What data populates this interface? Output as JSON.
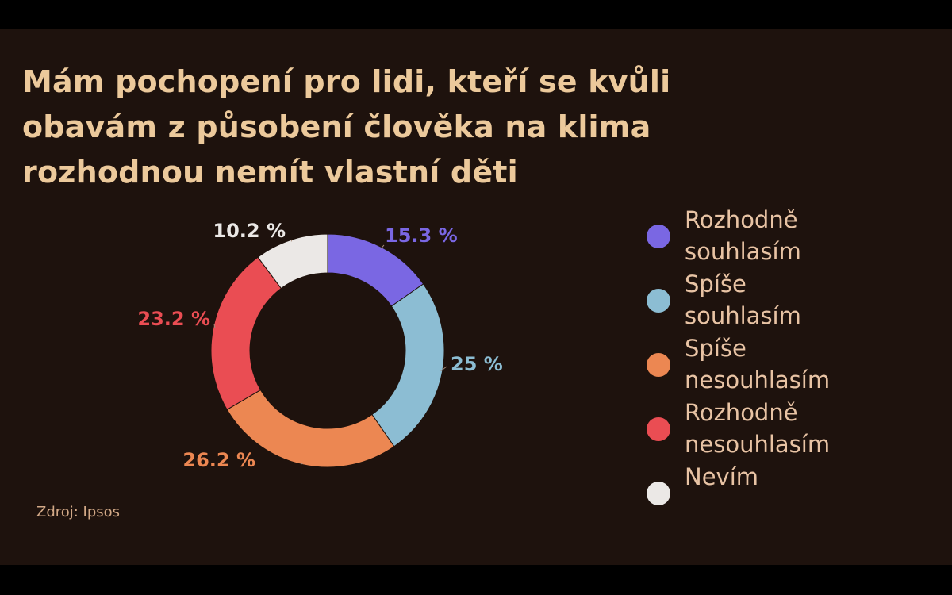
{
  "title_lines": [
    "Mám pochopení pro lidi, kteří se kvůli",
    "obavám z působení člověka na klima",
    "rozhodnou nemít vlastní děti"
  ],
  "source": "Zdroj: Ipsos",
  "chart_data": {
    "type": "pie",
    "donut": true,
    "title": "Mám pochopení pro lidi, kteří se kvůli obavám z působení člověka na klima rozhodnou nemít vlastní děti",
    "legend_position": "right",
    "slices": [
      {
        "name": "Rozhodně souhlasím",
        "value": 15.3,
        "label": "15.3 %",
        "color": "#7a67e3"
      },
      {
        "name": "Spíše souhlasím",
        "value": 25,
        "label": "25 %",
        "color": "#8cbdd3"
      },
      {
        "name": "Spíše nesouhlasím",
        "value": 26.2,
        "label": "26.2 %",
        "color": "#ec8752"
      },
      {
        "name": "Rozhodně nesouhlasím",
        "value": 23.2,
        "label": "23.2 %",
        "color": "#ea4d53"
      },
      {
        "name": "Nevím",
        "value": 10.2,
        "label": "10.2 %",
        "color": "#ebe8e6"
      }
    ]
  },
  "legend": [
    {
      "lines": [
        "Rozhodně",
        "souhlasím"
      ],
      "color": "#7a67e3"
    },
    {
      "lines": [
        "Spíše",
        "souhlasím"
      ],
      "color": "#8cbdd3"
    },
    {
      "lines": [
        "Spíše",
        "nesouhlasím"
      ],
      "color": "#ec8752"
    },
    {
      "lines": [
        "Rozhodně",
        "nesouhlasím"
      ],
      "color": "#ea4d53"
    },
    {
      "lines": [
        "Nevím"
      ],
      "color": "#ebe8e6"
    }
  ]
}
